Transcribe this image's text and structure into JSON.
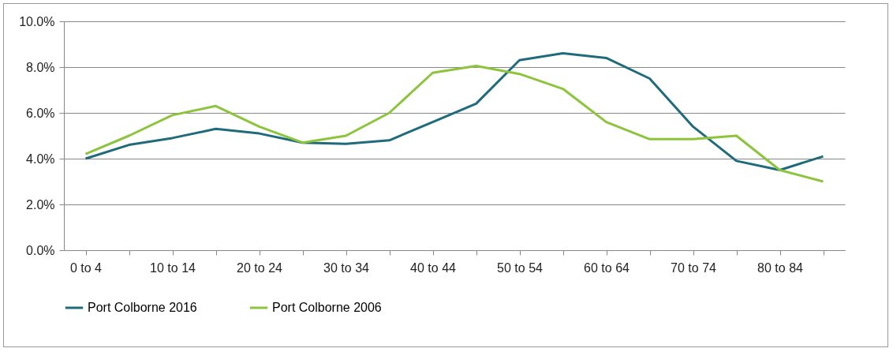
{
  "chart_data": {
    "type": "line",
    "categories": [
      "0 to 4",
      null,
      "10 to 14",
      null,
      "20 to 24",
      null,
      "30 to 34",
      null,
      "40 to 44",
      null,
      "50 to 54",
      null,
      "60 to 64",
      null,
      "70 to 74",
      null,
      "80 to 84",
      null
    ],
    "series": [
      {
        "name": "Port Colborne 2016",
        "color": "#1f6b7c",
        "values": [
          4.0,
          4.6,
          4.9,
          5.3,
          5.1,
          4.7,
          4.65,
          4.8,
          5.6,
          6.4,
          8.3,
          8.6,
          8.4,
          7.5,
          5.4,
          3.9,
          3.5,
          4.1
        ]
      },
      {
        "name": "Port Colborne 2006",
        "color": "#8cc43c",
        "values": [
          4.2,
          5.0,
          5.9,
          6.3,
          5.4,
          4.7,
          5.0,
          6.0,
          7.75,
          8.05,
          7.7,
          7.05,
          5.6,
          4.85,
          4.85,
          5.0,
          3.5,
          3.0
        ]
      }
    ],
    "ylim": [
      0,
      10
    ],
    "yticks": [
      {
        "value": 0,
        "label": "0.0%"
      },
      {
        "value": 2,
        "label": "2.0%"
      },
      {
        "value": 4,
        "label": "4.0%"
      },
      {
        "value": 6,
        "label": "6.0%"
      },
      {
        "value": 8,
        "label": "8.0%"
      },
      {
        "value": 10,
        "label": "10.0%"
      }
    ],
    "grid": "y",
    "legend": "bottom",
    "marker": "none",
    "line_style": "solid"
  }
}
